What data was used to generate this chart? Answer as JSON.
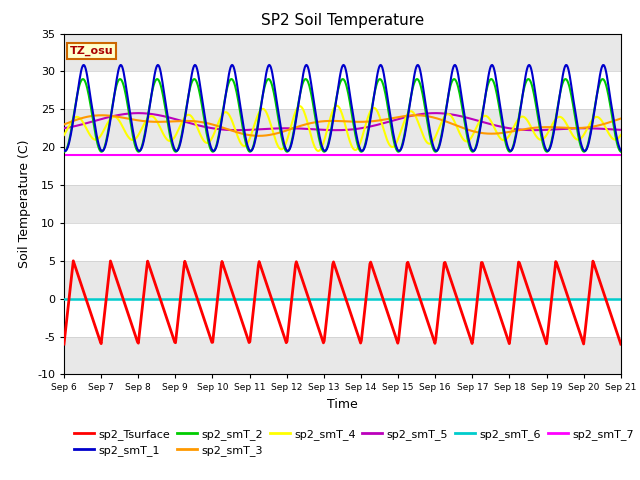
{
  "title": "SP2 Soil Temperature",
  "ylabel": "Soil Temperature (C)",
  "xlabel": "Time",
  "ylim": [
    -10,
    35
  ],
  "x_labels": [
    "Sep 6",
    "Sep 7",
    "Sep 8",
    "Sep 9",
    "Sep 10",
    "Sep 11",
    "Sep 12",
    "Sep 13",
    "Sep 14",
    "Sep 15",
    "Sep 16",
    "Sep 17",
    "Sep 18",
    "Sep 19",
    "Sep 20",
    "Sep 21"
  ],
  "annotation_text": "TZ_osu",
  "annotation_color": "#aa0000",
  "annotation_bg": "#ffffcc",
  "annotation_border": "#cc6600",
  "series_colors": {
    "sp2_Tsurface": "#ff0000",
    "sp2_smT_1": "#0000cc",
    "sp2_smT_2": "#00cc00",
    "sp2_smT_3": "#ff9900",
    "sp2_smT_4": "#ffff00",
    "sp2_smT_5": "#bb00bb",
    "sp2_smT_6": "#00cccc",
    "sp2_smT_7": "#ff00ff"
  },
  "band_colors": [
    "#ffffff",
    "#e8e8e8"
  ],
  "ytick_bands": [
    -10,
    -5,
    0,
    5,
    10,
    15,
    20,
    25,
    30,
    35
  ],
  "band_pattern": [
    1,
    0,
    1,
    0,
    1,
    0,
    1,
    0,
    1
  ],
  "title_fontsize": 11,
  "axis_label_fontsize": 9,
  "tick_fontsize": 8,
  "legend_fontsize": 8
}
